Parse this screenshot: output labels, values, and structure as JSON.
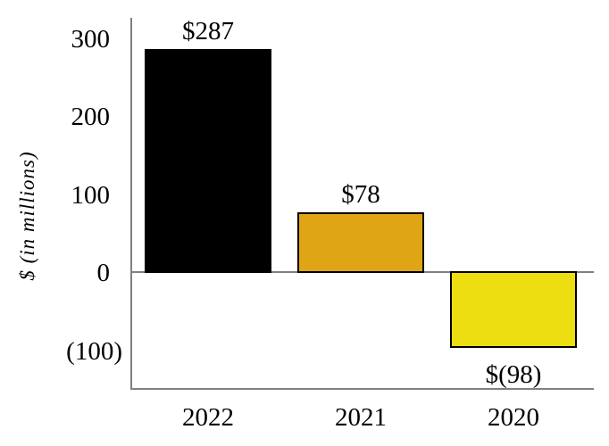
{
  "chart_data": {
    "type": "bar",
    "categories": [
      "2022",
      "2021",
      "2020"
    ],
    "values": [
      287,
      78,
      -98
    ],
    "bar_labels": [
      "$287",
      "$78",
      "$(98)"
    ],
    "bar_colors": [
      "#000000",
      "#E0A514",
      "#EDDE12"
    ],
    "bar_border_color": "#000000",
    "title": "",
    "xlabel": "",
    "ylabel": "$ (in millions)",
    "ylim": [
      -150,
      325
    ],
    "yticks": [
      {
        "value": 300,
        "label": "300"
      },
      {
        "value": 200,
        "label": "200"
      },
      {
        "value": 100,
        "label": "100"
      },
      {
        "value": 0,
        "label": "0"
      },
      {
        "value": -100,
        "label": "(100)"
      }
    ],
    "grid": false,
    "legend": false,
    "axis_color": "#808080"
  }
}
